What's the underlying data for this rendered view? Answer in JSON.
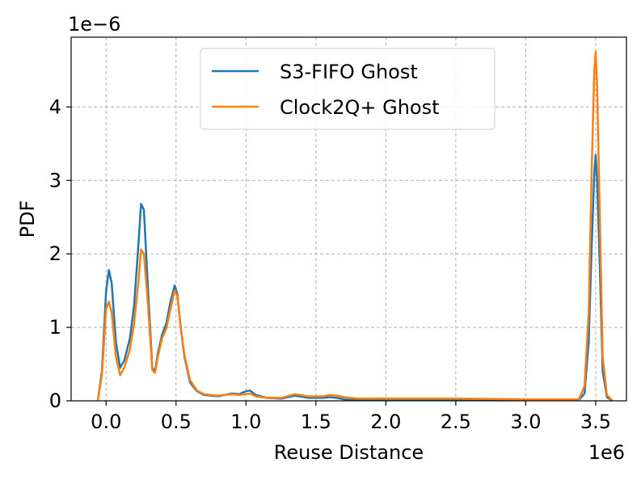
{
  "chart_data": {
    "type": "line",
    "xlabel": "Reuse Distance",
    "ylabel": "PDF",
    "x_offset_label": "1e6",
    "y_offset_label": "1e−6",
    "xlim": [
      -0.25,
      3.72
    ],
    "ylim": [
      0,
      4.95
    ],
    "xticks": [
      0.0,
      0.5,
      1.0,
      1.5,
      2.0,
      2.5,
      3.0,
      3.5
    ],
    "xtick_labels": [
      "0.0",
      "0.5",
      "1.0",
      "1.5",
      "2.0",
      "2.5",
      "3.0",
      "3.5"
    ],
    "yticks": [
      0,
      1,
      2,
      3,
      4
    ],
    "ytick_labels": [
      "0",
      "1",
      "2",
      "3",
      "4"
    ],
    "grid": true,
    "legend_position": "top-center",
    "series": [
      {
        "name": "S3-FIFO Ghost",
        "color": "#1f77b4",
        "x": [
          -0.06,
          -0.03,
          0.0,
          0.02,
          0.04,
          0.07,
          0.1,
          0.13,
          0.17,
          0.2,
          0.23,
          0.25,
          0.27,
          0.3,
          0.33,
          0.35,
          0.37,
          0.4,
          0.43,
          0.46,
          0.49,
          0.51,
          0.53,
          0.56,
          0.6,
          0.65,
          0.7,
          0.8,
          0.9,
          0.95,
          1.0,
          1.03,
          1.07,
          1.15,
          1.25,
          1.35,
          1.45,
          1.55,
          1.6,
          1.65,
          1.7,
          1.8,
          2.0,
          2.5,
          3.0,
          3.38,
          3.42,
          3.45,
          3.47,
          3.49,
          3.5,
          3.51,
          3.53,
          3.55,
          3.58,
          3.62
        ],
        "y": [
          0.0,
          0.4,
          1.5,
          1.78,
          1.6,
          0.8,
          0.45,
          0.55,
          0.85,
          1.3,
          2.1,
          2.68,
          2.6,
          1.5,
          0.45,
          0.4,
          0.65,
          0.9,
          1.05,
          1.35,
          1.57,
          1.45,
          1.05,
          0.6,
          0.25,
          0.13,
          0.08,
          0.06,
          0.1,
          0.09,
          0.13,
          0.14,
          0.08,
          0.04,
          0.03,
          0.07,
          0.04,
          0.04,
          0.05,
          0.04,
          0.02,
          0.01,
          0.01,
          0.01,
          0.01,
          0.01,
          0.1,
          0.8,
          2.0,
          3.1,
          3.35,
          3.0,
          1.8,
          0.4,
          0.05,
          0.0
        ]
      },
      {
        "name": "Clock2Q+ Ghost",
        "color": "#ff7f0e",
        "x": [
          -0.06,
          -0.03,
          0.0,
          0.02,
          0.04,
          0.07,
          0.1,
          0.13,
          0.17,
          0.2,
          0.23,
          0.25,
          0.27,
          0.3,
          0.33,
          0.35,
          0.37,
          0.4,
          0.43,
          0.46,
          0.49,
          0.51,
          0.53,
          0.56,
          0.6,
          0.65,
          0.7,
          0.8,
          0.9,
          0.95,
          1.0,
          1.03,
          1.07,
          1.15,
          1.25,
          1.35,
          1.45,
          1.55,
          1.6,
          1.65,
          1.7,
          1.8,
          2.0,
          2.5,
          3.0,
          3.38,
          3.42,
          3.45,
          3.47,
          3.49,
          3.5,
          3.51,
          3.53,
          3.55,
          3.58,
          3.62
        ],
        "y": [
          0.0,
          0.35,
          1.25,
          1.35,
          1.2,
          0.6,
          0.35,
          0.45,
          0.7,
          1.05,
          1.6,
          2.06,
          2.0,
          1.3,
          0.42,
          0.38,
          0.6,
          0.85,
          0.98,
          1.25,
          1.5,
          1.42,
          1.05,
          0.62,
          0.28,
          0.14,
          0.09,
          0.07,
          0.09,
          0.08,
          0.09,
          0.1,
          0.06,
          0.04,
          0.04,
          0.09,
          0.06,
          0.06,
          0.08,
          0.07,
          0.05,
          0.03,
          0.03,
          0.03,
          0.02,
          0.02,
          0.2,
          1.2,
          3.0,
          4.5,
          4.75,
          4.3,
          2.5,
          0.6,
          0.08,
          0.0
        ]
      }
    ]
  }
}
